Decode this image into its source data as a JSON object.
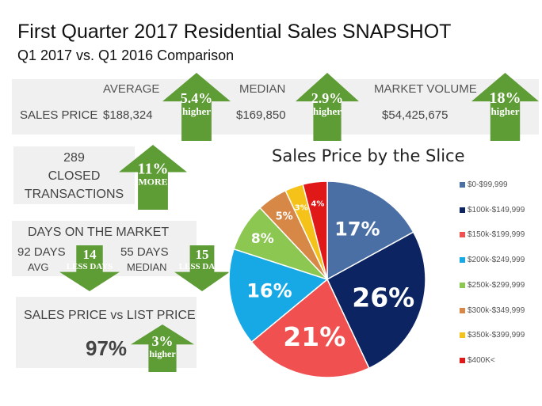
{
  "header": {
    "title": "First Quarter 2017  Residential Sales SNAPSHOT",
    "subtitle": "Q1 2017 vs. Q1 2016 Comparison"
  },
  "sales_price": {
    "row_label": "SALES PRICE",
    "columns": [
      {
        "label": "AVERAGE",
        "value": "$188,324",
        "change": "5.4%",
        "change_word": "higher"
      },
      {
        "label": "MEDIAN",
        "value": "$169,850",
        "change": "2.9%",
        "change_word": "higher"
      },
      {
        "label": "MARKET VOLUME",
        "value": "$54,425,675",
        "change": "18%",
        "change_word": "higher"
      }
    ]
  },
  "closed": {
    "count": "289",
    "line1": "CLOSED",
    "line2": "TRANSACTIONS",
    "change": "11%",
    "change_word": "MORE"
  },
  "dom": {
    "title": "DAYS ON THE MARKET",
    "avg_value": "92 DAYS",
    "avg_label": "AVG",
    "avg_change": "14",
    "avg_change_word": "LESS DAYS",
    "median_value": "55 DAYS",
    "median_label": "MEDIAN",
    "median_change": "15",
    "median_change_word": "LESS DAYS"
  },
  "list_ratio": {
    "title": "SALES PRICE  vs  LIST PRICE",
    "value": "97%",
    "change": "3%",
    "change_word": "higher"
  },
  "colors": {
    "arrow": "#5e9c35",
    "band": "#f0f0f0"
  },
  "chart_data": {
    "type": "pie",
    "title": "Sales Price by the Slice",
    "legend_position": "right",
    "categories": [
      "$0-$99,999",
      "$100k-$149,999",
      "$150k-$199,999",
      "$200k-$249,999",
      "$250k-$299,999",
      "$300k-$349,999",
      "$350k-$399,999",
      "$400K<"
    ],
    "values": [
      17,
      26,
      21,
      16,
      8,
      5,
      3,
      4
    ],
    "labels": [
      "17%",
      "26%",
      "21%",
      "16%",
      "8%",
      "5%",
      "3%",
      "4%"
    ],
    "colors": [
      "#4a6fa5",
      "#0c2461",
      "#f0504f",
      "#17a9e6",
      "#8cc751",
      "#d88846",
      "#f5c21a",
      "#e01818"
    ]
  }
}
